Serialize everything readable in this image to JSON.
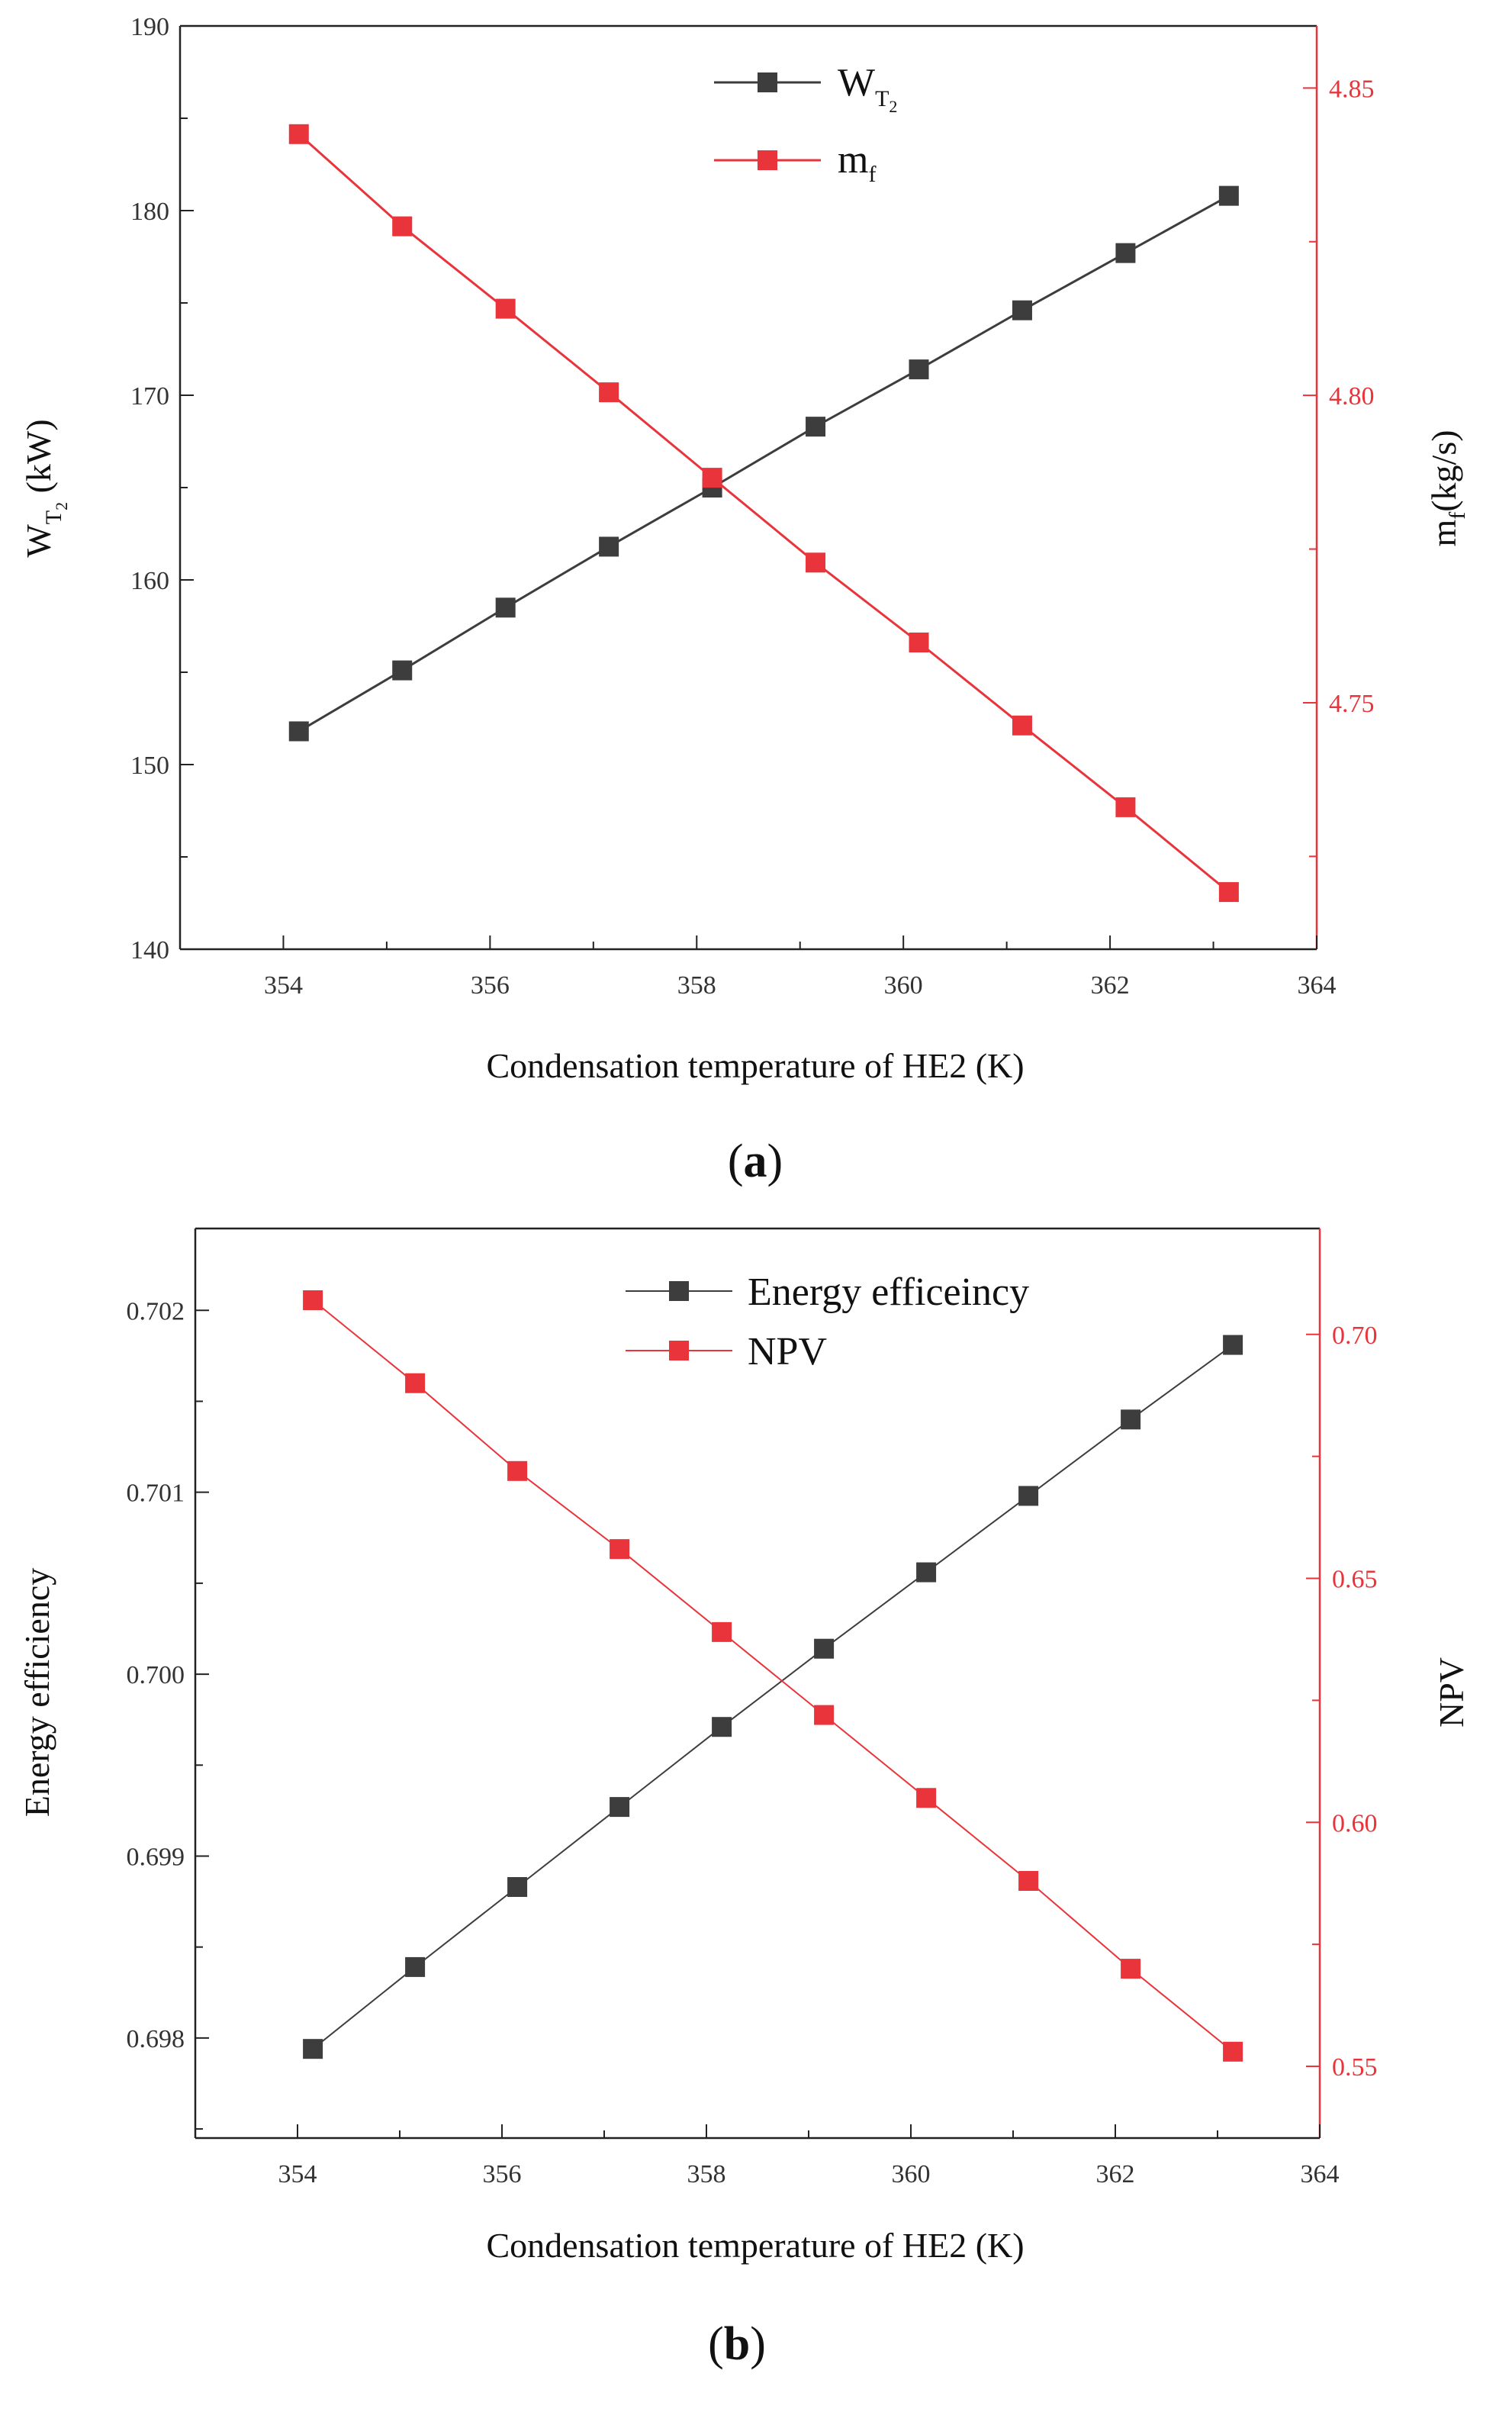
{
  "colors": {
    "black_series": "#3d3d3d",
    "red_series": "#e8343a",
    "axis": "#222222"
  },
  "panels": {
    "a": {
      "label": "(a)",
      "label_letter": "a"
    },
    "b": {
      "label": "(b)",
      "label_letter": "b"
    }
  },
  "chart_data": [
    {
      "type": "line",
      "panel": "a",
      "title": "",
      "xlabel": "Condensation temperature of HE2 (K)",
      "ylabel_left": "W_T2 (kW)",
      "ylabel_left_parts": {
        "base": "W",
        "sub": "T",
        "subsub": "2",
        "unit": " (kW)"
      },
      "ylabel_right": "m_f(kg/s)",
      "ylabel_right_parts": {
        "base": "m",
        "sub": "f",
        "unit": "(kg/s)"
      },
      "xlim": [
        353,
        364
      ],
      "ylim_left": [
        140,
        190
      ],
      "ylim_right": [
        4.7099,
        4.8601
      ],
      "xticks": [
        354,
        356,
        358,
        360,
        362,
        364
      ],
      "yticks_left": [
        140,
        150,
        160,
        170,
        180,
        190
      ],
      "yticks_right": [
        4.75,
        4.8,
        4.85
      ],
      "yticks_right_labels": [
        "4.75",
        "4.80",
        "4.85"
      ],
      "x": [
        354.15,
        355.15,
        356.15,
        357.15,
        358.15,
        359.15,
        360.15,
        361.15,
        362.15,
        363.15
      ],
      "series": [
        {
          "name": "W_T2",
          "legend_parts": {
            "base": "W",
            "sub": "T",
            "subsub": "2"
          },
          "axis": "left",
          "color": "#3d3d3d",
          "values": [
            151.8,
            155.1,
            158.5,
            161.8,
            165.0,
            168.3,
            171.4,
            174.6,
            177.7,
            180.8
          ]
        },
        {
          "name": "m_f",
          "legend_parts": {
            "base": "m",
            "sub": "f"
          },
          "axis": "right",
          "color": "#e8343a",
          "values": [
            4.8425,
            4.8275,
            4.8141,
            4.8005,
            4.7866,
            4.7728,
            4.7598,
            4.7463,
            4.733,
            4.7192
          ]
        }
      ],
      "legend_position": "top-center"
    },
    {
      "type": "line",
      "panel": "b",
      "title": "",
      "xlabel": "Condensation temperature of HE2 (K)",
      "ylabel_left": "Energy efficiency",
      "ylabel_right": "NPV",
      "xlim": [
        353,
        364
      ],
      "ylim_left": [
        0.69745,
        0.70245
      ],
      "ylim_right": [
        0.5353,
        0.7217
      ],
      "xticks": [
        354,
        356,
        358,
        360,
        362,
        364
      ],
      "yticks_left": [
        0.698,
        0.699,
        0.7,
        0.701,
        0.702
      ],
      "yticks_left_labels": [
        "0.698",
        "0.699",
        "0.700",
        "0.701",
        "0.702"
      ],
      "yticks_right": [
        0.55,
        0.6,
        0.65,
        0.7
      ],
      "yticks_right_labels": [
        "0.55",
        "0.60",
        "0.65",
        "0.70"
      ],
      "x": [
        354.15,
        355.15,
        356.15,
        357.15,
        358.15,
        359.15,
        360.15,
        361.15,
        362.15,
        363.15
      ],
      "series": [
        {
          "name": "Energy efficeincy",
          "axis": "left",
          "color": "#3d3d3d",
          "values": [
            0.69794,
            0.69839,
            0.69883,
            0.69927,
            0.69971,
            0.70014,
            0.70056,
            0.70098,
            0.7014,
            0.70181
          ]
        },
        {
          "name": "NPV",
          "axis": "right",
          "color": "#e8343a",
          "values": [
            0.707,
            0.69,
            0.672,
            0.656,
            0.639,
            0.622,
            0.605,
            0.588,
            0.57,
            0.553
          ]
        }
      ],
      "legend_position": "top-center"
    }
  ]
}
